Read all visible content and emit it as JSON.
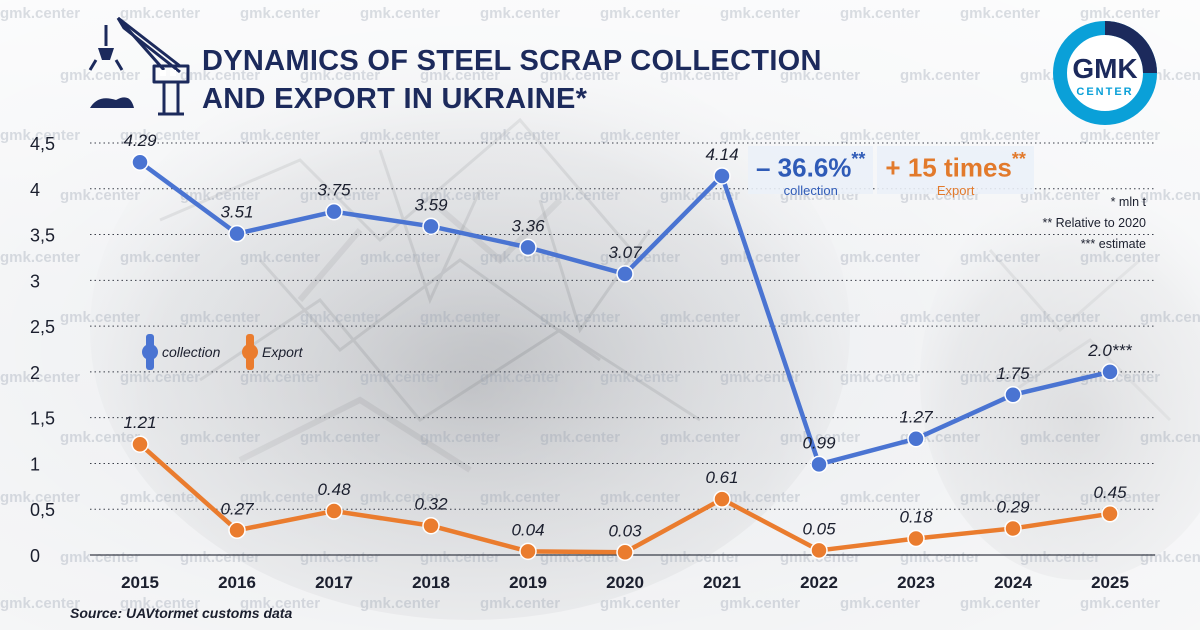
{
  "title_lines": [
    "DYNAMICS OF STEEL SCRAP COLLECTION",
    "AND EXPORT IN UKRAINE*"
  ],
  "logo": {
    "line1": "GMK",
    "line2": "CENTER",
    "color": "#0aa0d8",
    "dark": "#1c2a5c"
  },
  "watermark": "gmk.center",
  "kpi": [
    {
      "value": "– 36.6%",
      "mark": "**",
      "label": "collection",
      "color": "#2f5bb7"
    },
    {
      "value": "+ 15 times",
      "mark": "**",
      "label": "Export",
      "color": "#e27a2c"
    }
  ],
  "notes": [
    "* mln t",
    "** Relative to 2020",
    "*** estimate"
  ],
  "source": "Source: UAVtormet customs data",
  "chart_data": {
    "type": "line",
    "categories": [
      "2015",
      "2016",
      "2017",
      "2018",
      "2019",
      "2020",
      "2021",
      "2022",
      "2023",
      "2024",
      "2025"
    ],
    "ylim": [
      0,
      4.5
    ],
    "yticks": [
      "0",
      "0,5",
      "1",
      "1,5",
      "2",
      "2,5",
      "3",
      "3,5",
      "4",
      "4,5"
    ],
    "grid": true,
    "legend_position": "left-middle",
    "series": [
      {
        "name": "collection",
        "color": "#4a74d2",
        "values": [
          4.29,
          3.51,
          3.75,
          3.59,
          3.36,
          3.07,
          4.14,
          0.99,
          1.27,
          1.75,
          2.0
        ],
        "labels": [
          "4.29",
          "3.51",
          "3.75",
          "3.59",
          "3.36",
          "3.07",
          "4.14",
          "0.99",
          "1.27",
          "1.75",
          "2.0***"
        ]
      },
      {
        "name": "Export",
        "color": "#ea7c2e",
        "values": [
          1.21,
          0.27,
          0.48,
          0.32,
          0.04,
          0.03,
          0.61,
          0.05,
          0.18,
          0.29,
          0.45
        ],
        "labels": [
          "1.21",
          "0.27",
          "0.48",
          "0.32",
          "0.04",
          "0.03",
          "0.61",
          "0.05",
          "0.18",
          "0.29",
          "0.45"
        ]
      }
    ]
  }
}
